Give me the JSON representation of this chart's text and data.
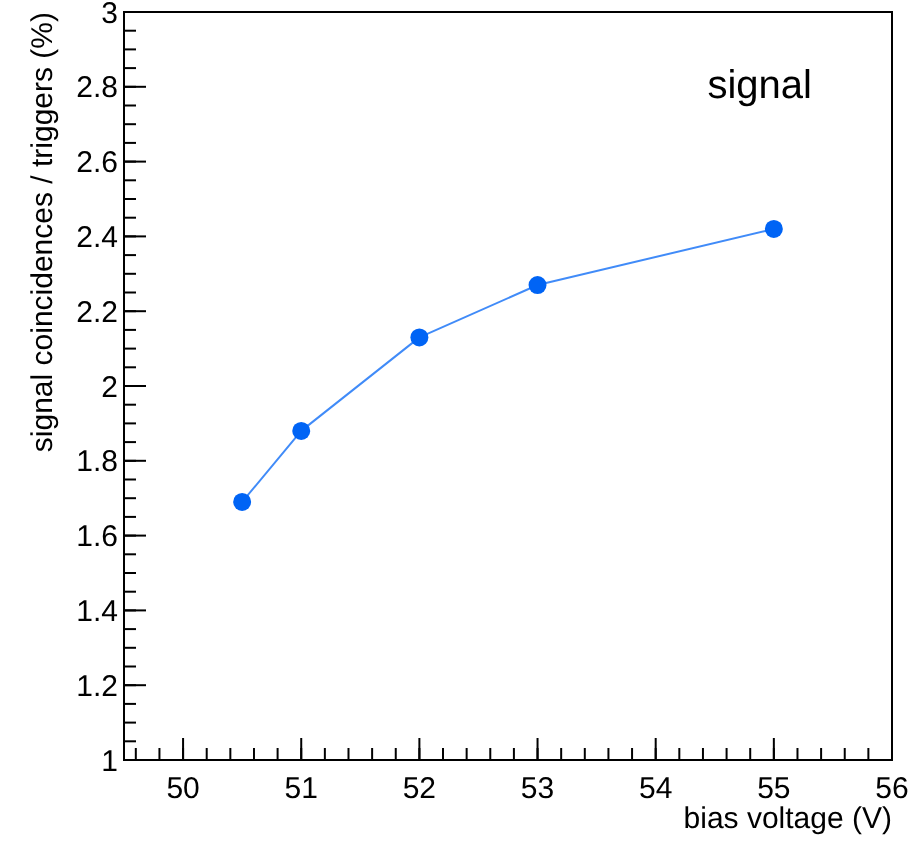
{
  "chart_data": {
    "type": "line",
    "xlabel": "bias voltage (V)",
    "ylabel": "signal coincidences / triggers (%)",
    "annotations": [
      "signal"
    ],
    "x": [
      50.5,
      51,
      52,
      53,
      55
    ],
    "series": [
      {
        "color": "#0064f5",
        "values": [
          1.69,
          1.88,
          2.13,
          2.27,
          2.42
        ]
      }
    ],
    "xlim": [
      49.5,
      56
    ],
    "xticks": [
      50,
      51,
      52,
      53,
      54,
      55,
      56
    ],
    "ylim": [
      1,
      3
    ],
    "yticks": [
      1,
      1.2,
      1.4,
      1.6,
      1.8,
      2,
      2.2,
      2.4,
      2.6,
      2.8,
      3
    ],
    "grid": false,
    "marker": "circle",
    "line_style": "solid"
  }
}
